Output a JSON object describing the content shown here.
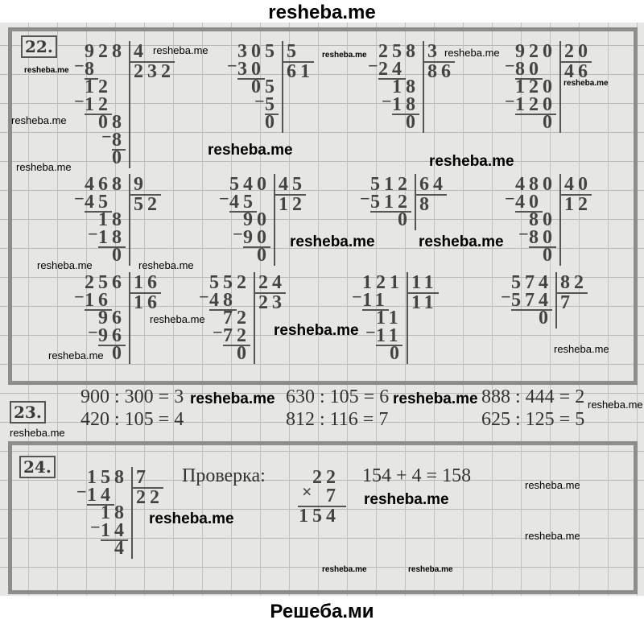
{
  "header": {
    "site": "resheba.me"
  },
  "footer": {
    "site": "Решеба.ми"
  },
  "task22": {
    "label": "22.",
    "divisions": [
      {
        "dividend": "928",
        "divisor": "4",
        "quotient": "232",
        "steps": [
          "8",
          "12",
          "12",
          "08",
          "8",
          "0"
        ]
      },
      {
        "dividend": "305",
        "divisor": "5",
        "quotient": "61",
        "steps": [
          "30",
          "05",
          "5",
          "0"
        ]
      },
      {
        "dividend": "258",
        "divisor": "3",
        "quotient": "86",
        "steps": [
          "24",
          "18",
          "18",
          "0"
        ]
      },
      {
        "dividend": "920",
        "divisor": "20",
        "quotient": "46",
        "steps": [
          "80",
          "120",
          "120",
          "0"
        ]
      },
      {
        "dividend": "468",
        "divisor": "9",
        "quotient": "52",
        "steps": [
          "45",
          "18",
          "18",
          "0"
        ]
      },
      {
        "dividend": "540",
        "divisor": "45",
        "quotient": "12",
        "steps": [
          "45",
          "90",
          "90",
          "0"
        ]
      },
      {
        "dividend": "512",
        "divisor": "64",
        "quotient": "8",
        "steps": [
          "512",
          "0"
        ]
      },
      {
        "dividend": "480",
        "divisor": "40",
        "quotient": "12",
        "steps": [
          "40",
          "80",
          "80",
          "0"
        ]
      },
      {
        "dividend": "256",
        "divisor": "16",
        "quotient": "16",
        "steps": [
          "16",
          "96",
          "96",
          "0"
        ]
      },
      {
        "dividend": "552",
        "divisor": "24",
        "quotient": "23",
        "steps": [
          "48",
          "72",
          "72",
          "0"
        ]
      },
      {
        "dividend": "121",
        "divisor": "11",
        "quotient": "11",
        "steps": [
          "11",
          "11",
          "11",
          "0"
        ]
      },
      {
        "dividend": "574",
        "divisor": "82",
        "quotient": "7",
        "steps": [
          "574",
          "0"
        ]
      }
    ]
  },
  "task23": {
    "label": "23.",
    "equations": [
      "900 : 300 = 3",
      "630 : 105 = 6",
      "888 : 444 = 2",
      "420 : 105 = 4",
      "812 : 116 = 7",
      "625 : 125 = 5"
    ]
  },
  "task24": {
    "label": "24.",
    "division": {
      "dividend": "158",
      "divisor": "7",
      "quotient": "22",
      "steps": [
        "14",
        "18",
        "14",
        "4"
      ]
    },
    "check_label": "Проверка:",
    "multiplication": {
      "a": "22",
      "sign": "×",
      "b": "7",
      "result": "154"
    },
    "check_equation": "154 + 4 = 158"
  },
  "watermark": "resheba.me"
}
